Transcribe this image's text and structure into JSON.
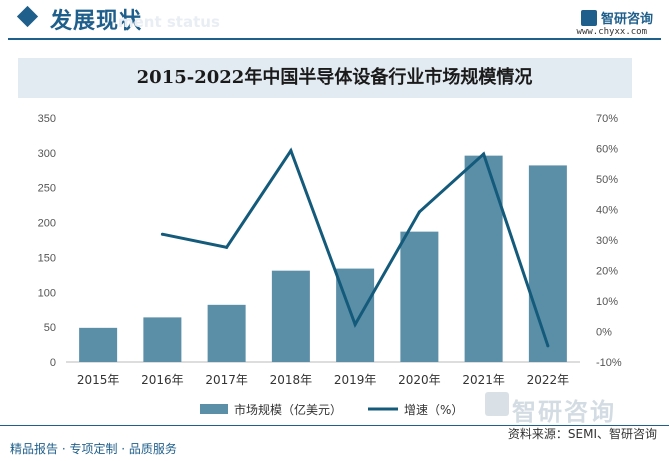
{
  "header": {
    "section_title": "发展现状",
    "section_subtitle": "ment status",
    "brand_name": "智研咨询",
    "brand_url": "www.chyxx.com"
  },
  "watermark": {
    "text": "智研咨询"
  },
  "footer": {
    "left_text": "精品报告 · 专项定制 · 品质服务",
    "source_text": "资料来源：SEMI、智研咨询"
  },
  "colors": {
    "bar": "#5b8fa8",
    "line": "#145a7a",
    "brand": "#1f5f8b"
  },
  "chart_data": {
    "type": "bar",
    "title": "2015-2022年中国半导体设备行业市场规模情况",
    "categories": [
      "2015年",
      "2016年",
      "2017年",
      "2018年",
      "2019年",
      "2020年",
      "2021年",
      "2022年"
    ],
    "series": [
      {
        "name": "市场规模（亿美元）",
        "type": "bar",
        "axis": "left",
        "values": [
          49,
          64,
          82,
          131,
          134,
          187,
          296,
          282
        ]
      },
      {
        "name": "增速（%）",
        "type": "line",
        "axis": "right",
        "values": [
          null,
          31.9,
          27.6,
          59.3,
          2.3,
          39.2,
          58.2,
          -4.7
        ]
      }
    ],
    "ylim": [
      0,
      350
    ],
    "yticks": [
      0,
      50,
      100,
      150,
      200,
      250,
      300,
      350
    ],
    "y2lim": [
      -10,
      70
    ],
    "y2ticks": [
      "-10%",
      "0%",
      "10%",
      "20%",
      "30%",
      "40%",
      "50%",
      "60%",
      "70%"
    ],
    "y2tick_values": [
      -10,
      0,
      10,
      20,
      30,
      40,
      50,
      60,
      70
    ],
    "xlabel": "",
    "ylabel": "",
    "legend_position": "bottom-center",
    "grid": false
  }
}
